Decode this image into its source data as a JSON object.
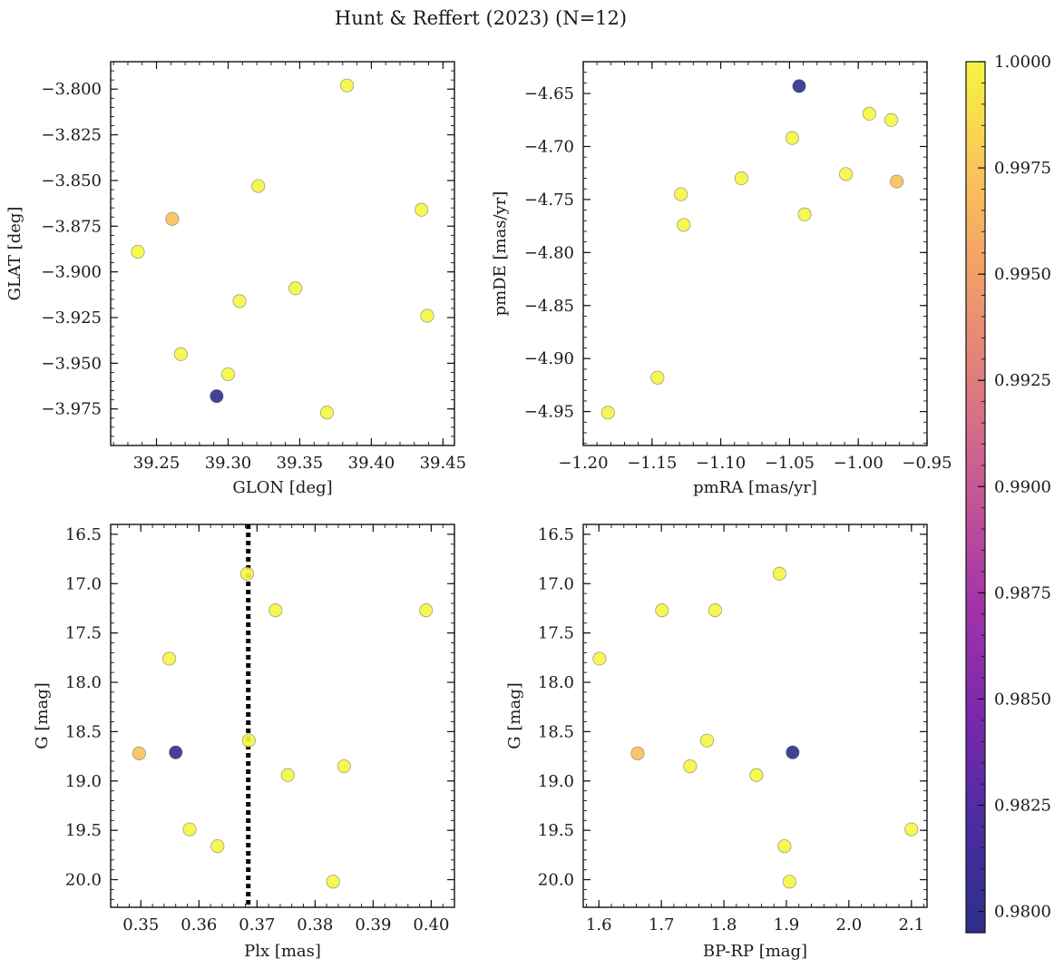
{
  "title": "Hunt & Reffert (2023) (N=12)",
  "colors": {
    "cmap_low": "#2c2e8a",
    "cmap_high": "#f5f542",
    "frame": "#111111",
    "refline": "#000000"
  },
  "colorbar": {
    "vmin": 0.9795,
    "vmax": 1.0,
    "tick_values": [
      0.98,
      0.9825,
      0.985,
      0.9875,
      0.99,
      0.9925,
      0.995,
      0.9975,
      1.0
    ],
    "tick_labels": [
      "0.9800",
      "0.9825",
      "0.9850",
      "0.9875",
      "0.9900",
      "0.9925",
      "0.9950",
      "0.9975",
      "1.0000"
    ]
  },
  "chart_data": [
    {
      "type": "scatter",
      "id": "glon-glat",
      "xlabel": "GLON [deg]",
      "ylabel": "GLAT [deg]",
      "xlim": [
        39.218,
        39.458
      ],
      "ylim": [
        -3.995,
        -3.785
      ],
      "y_inverted": false,
      "xticks": [
        39.25,
        39.3,
        39.35,
        39.4,
        39.45
      ],
      "xtick_labels": [
        "39.25",
        "39.30",
        "39.35",
        "39.40",
        "39.45"
      ],
      "yticks": [
        -3.8,
        -3.825,
        -3.85,
        -3.875,
        -3.9,
        -3.925,
        -3.95,
        -3.975
      ],
      "ytick_labels": [
        "−3.800",
        "−3.825",
        "−3.850",
        "−3.875",
        "−3.900",
        "−3.925",
        "−3.950",
        "−3.975"
      ],
      "points": [
        {
          "x": 39.383,
          "y": -3.798,
          "c": 1.0
        },
        {
          "x": 39.321,
          "y": -3.853,
          "c": 1.0
        },
        {
          "x": 39.261,
          "y": -3.871,
          "c": 0.9972
        },
        {
          "x": 39.435,
          "y": -3.866,
          "c": 1.0
        },
        {
          "x": 39.237,
          "y": -3.889,
          "c": 1.0
        },
        {
          "x": 39.347,
          "y": -3.909,
          "c": 1.0
        },
        {
          "x": 39.308,
          "y": -3.916,
          "c": 1.0
        },
        {
          "x": 39.439,
          "y": -3.924,
          "c": 1.0
        },
        {
          "x": 39.267,
          "y": -3.945,
          "c": 1.0
        },
        {
          "x": 39.3,
          "y": -3.956,
          "c": 1.0
        },
        {
          "x": 39.292,
          "y": -3.968,
          "c": 0.9797
        },
        {
          "x": 39.369,
          "y": -3.977,
          "c": 1.0
        }
      ]
    },
    {
      "type": "scatter",
      "id": "pm",
      "xlabel": "pmRA [mas/yr]",
      "ylabel": "pmDE [mas/yr]",
      "xlim": [
        -1.2,
        -0.95
      ],
      "ylim": [
        -4.982,
        -4.62
      ],
      "y_inverted": false,
      "xticks": [
        -1.2,
        -1.15,
        -1.1,
        -1.05,
        -1.0,
        -0.95
      ],
      "xtick_labels": [
        "−1.20",
        "−1.15",
        "−1.10",
        "−1.05",
        "−1.00",
        "−0.95"
      ],
      "yticks": [
        -4.65,
        -4.7,
        -4.75,
        -4.8,
        -4.85,
        -4.9,
        -4.95
      ],
      "ytick_labels": [
        "−4.65",
        "−4.70",
        "−4.75",
        "−4.80",
        "−4.85",
        "−4.90",
        "−4.95"
      ],
      "points": [
        {
          "x": -1.043,
          "y": -4.643,
          "c": 0.9797
        },
        {
          "x": -0.992,
          "y": -4.669,
          "c": 1.0
        },
        {
          "x": -0.976,
          "y": -4.675,
          "c": 1.0
        },
        {
          "x": -1.048,
          "y": -4.692,
          "c": 1.0
        },
        {
          "x": -1.085,
          "y": -4.73,
          "c": 1.0
        },
        {
          "x": -1.009,
          "y": -4.726,
          "c": 1.0
        },
        {
          "x": -0.972,
          "y": -4.733,
          "c": 0.9972
        },
        {
          "x": -1.129,
          "y": -4.745,
          "c": 1.0
        },
        {
          "x": -1.039,
          "y": -4.764,
          "c": 1.0
        },
        {
          "x": -1.127,
          "y": -4.774,
          "c": 1.0
        },
        {
          "x": -1.146,
          "y": -4.918,
          "c": 1.0
        },
        {
          "x": -1.182,
          "y": -4.951,
          "c": 1.0
        }
      ]
    },
    {
      "type": "scatter",
      "id": "plx-g",
      "xlabel": "Plx [mas]",
      "ylabel": "G [mag]",
      "xlim": [
        0.3448,
        0.404
      ],
      "ylim": [
        16.4,
        20.28
      ],
      "y_inverted": true,
      "vline": 0.3685,
      "xticks": [
        0.35,
        0.36,
        0.37,
        0.38,
        0.39,
        0.4
      ],
      "xtick_labels": [
        "0.35",
        "0.36",
        "0.37",
        "0.38",
        "0.39",
        "0.40"
      ],
      "yticks": [
        16.5,
        17.0,
        17.5,
        18.0,
        18.5,
        19.0,
        19.5,
        20.0
      ],
      "ytick_labels": [
        "16.5",
        "17.0",
        "17.5",
        "18.0",
        "18.5",
        "19.0",
        "19.5",
        "20.0"
      ],
      "points": [
        {
          "x": 0.3683,
          "y": 16.9,
          "c": 1.0
        },
        {
          "x": 0.3732,
          "y": 17.27,
          "c": 1.0
        },
        {
          "x": 0.3991,
          "y": 17.27,
          "c": 1.0
        },
        {
          "x": 0.3549,
          "y": 17.76,
          "c": 1.0
        },
        {
          "x": 0.3686,
          "y": 18.59,
          "c": 1.0
        },
        {
          "x": 0.385,
          "y": 18.85,
          "c": 1.0
        },
        {
          "x": 0.3497,
          "y": 18.72,
          "c": 0.9972
        },
        {
          "x": 0.356,
          "y": 18.71,
          "c": 0.9797
        },
        {
          "x": 0.3753,
          "y": 18.94,
          "c": 1.0
        },
        {
          "x": 0.3584,
          "y": 19.49,
          "c": 1.0
        },
        {
          "x": 0.3632,
          "y": 19.66,
          "c": 1.0
        },
        {
          "x": 0.3831,
          "y": 20.02,
          "c": 1.0
        }
      ]
    },
    {
      "type": "scatter",
      "id": "cmd",
      "xlabel": "BP-RP [mag]",
      "ylabel": "G [mag]",
      "xlim": [
        1.575,
        2.125
      ],
      "ylim": [
        16.4,
        20.28
      ],
      "y_inverted": true,
      "xticks": [
        1.6,
        1.7,
        1.8,
        1.9,
        2.0,
        2.1
      ],
      "xtick_labels": [
        "1.6",
        "1.7",
        "1.8",
        "1.9",
        "2.0",
        "2.1"
      ],
      "yticks": [
        16.5,
        17.0,
        17.5,
        18.0,
        18.5,
        19.0,
        19.5,
        20.0
      ],
      "ytick_labels": [
        "16.5",
        "17.0",
        "17.5",
        "18.0",
        "18.5",
        "19.0",
        "19.5",
        "20.0"
      ],
      "points": [
        {
          "x": 1.889,
          "y": 16.9,
          "c": 1.0
        },
        {
          "x": 1.701,
          "y": 17.27,
          "c": 1.0
        },
        {
          "x": 1.786,
          "y": 17.27,
          "c": 1.0
        },
        {
          "x": 1.601,
          "y": 17.76,
          "c": 1.0
        },
        {
          "x": 1.773,
          "y": 18.59,
          "c": 1.0
        },
        {
          "x": 1.662,
          "y": 18.72,
          "c": 0.9972
        },
        {
          "x": 1.91,
          "y": 18.71,
          "c": 0.9797
        },
        {
          "x": 1.746,
          "y": 18.85,
          "c": 1.0
        },
        {
          "x": 1.852,
          "y": 18.94,
          "c": 1.0
        },
        {
          "x": 2.1,
          "y": 19.49,
          "c": 1.0
        },
        {
          "x": 1.897,
          "y": 19.66,
          "c": 1.0
        },
        {
          "x": 1.905,
          "y": 20.02,
          "c": 1.0
        }
      ]
    }
  ]
}
